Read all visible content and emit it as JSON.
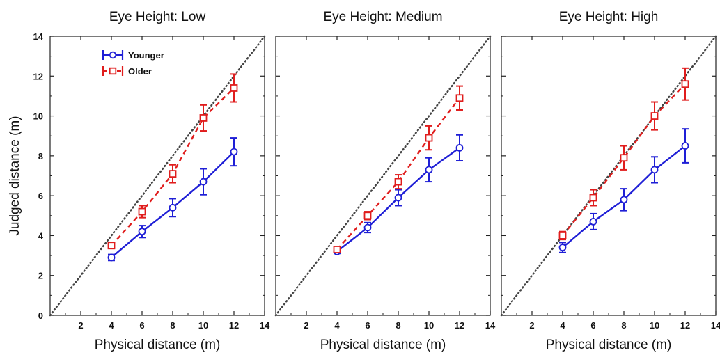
{
  "colors": {
    "younger": "#1f1fd6",
    "older": "#e01d1d",
    "identity": "#444444"
  },
  "legend": {
    "younger": "Younger",
    "older": "Older",
    "placement": "top-left of first panel"
  },
  "axes": {
    "xlabel": "Physical distance (m)",
    "ylabel": "Judged distance (m)",
    "x_ticks": [
      2,
      4,
      6,
      8,
      10,
      12,
      14
    ],
    "y_ticks": [
      0,
      2,
      4,
      6,
      8,
      10,
      12,
      14
    ]
  },
  "chart_data": [
    {
      "type": "line",
      "title": "Eye Height: Low",
      "xlabel": "Physical distance (m)",
      "ylabel": "Judged distance (m)",
      "xlim": [
        0,
        14
      ],
      "ylim": [
        0,
        14
      ],
      "reference_line": "y = x (dotted)",
      "x": [
        4,
        6,
        8,
        10,
        12
      ],
      "series": [
        {
          "name": "Younger",
          "values": [
            2.9,
            4.2,
            5.4,
            6.7,
            8.2
          ],
          "error": [
            0.15,
            0.3,
            0.45,
            0.65,
            0.7
          ]
        },
        {
          "name": "Older",
          "values": [
            3.5,
            5.2,
            7.1,
            9.9,
            11.4
          ],
          "error": [
            0.15,
            0.3,
            0.45,
            0.65,
            0.7
          ]
        }
      ]
    },
    {
      "type": "line",
      "title": "Eye Height: Medium",
      "xlabel": "Physical distance (m)",
      "ylabel": "",
      "xlim": [
        0,
        14
      ],
      "ylim": [
        0,
        14
      ],
      "reference_line": "y = x (dotted)",
      "x": [
        4,
        6,
        8,
        10,
        12
      ],
      "series": [
        {
          "name": "Younger",
          "values": [
            3.2,
            4.4,
            5.9,
            7.3,
            8.4
          ],
          "error": [
            0.1,
            0.25,
            0.4,
            0.6,
            0.65
          ]
        },
        {
          "name": "Older",
          "values": [
            3.3,
            5.0,
            6.7,
            8.9,
            10.9
          ],
          "error": [
            0.1,
            0.2,
            0.35,
            0.6,
            0.6
          ]
        }
      ]
    },
    {
      "type": "line",
      "title": "Eye Height: High",
      "xlabel": "Physical distance (m)",
      "ylabel": "",
      "xlim": [
        0,
        14
      ],
      "ylim": [
        0,
        14
      ],
      "reference_line": "y = x (dotted)",
      "x": [
        4,
        6,
        8,
        10,
        12
      ],
      "series": [
        {
          "name": "Younger",
          "values": [
            3.4,
            4.7,
            5.8,
            7.3,
            8.5
          ],
          "error": [
            0.25,
            0.4,
            0.55,
            0.65,
            0.85
          ]
        },
        {
          "name": "Older",
          "values": [
            4.0,
            5.9,
            7.9,
            10.0,
            11.6
          ],
          "error": [
            0.2,
            0.4,
            0.6,
            0.7,
            0.8
          ]
        }
      ]
    }
  ]
}
